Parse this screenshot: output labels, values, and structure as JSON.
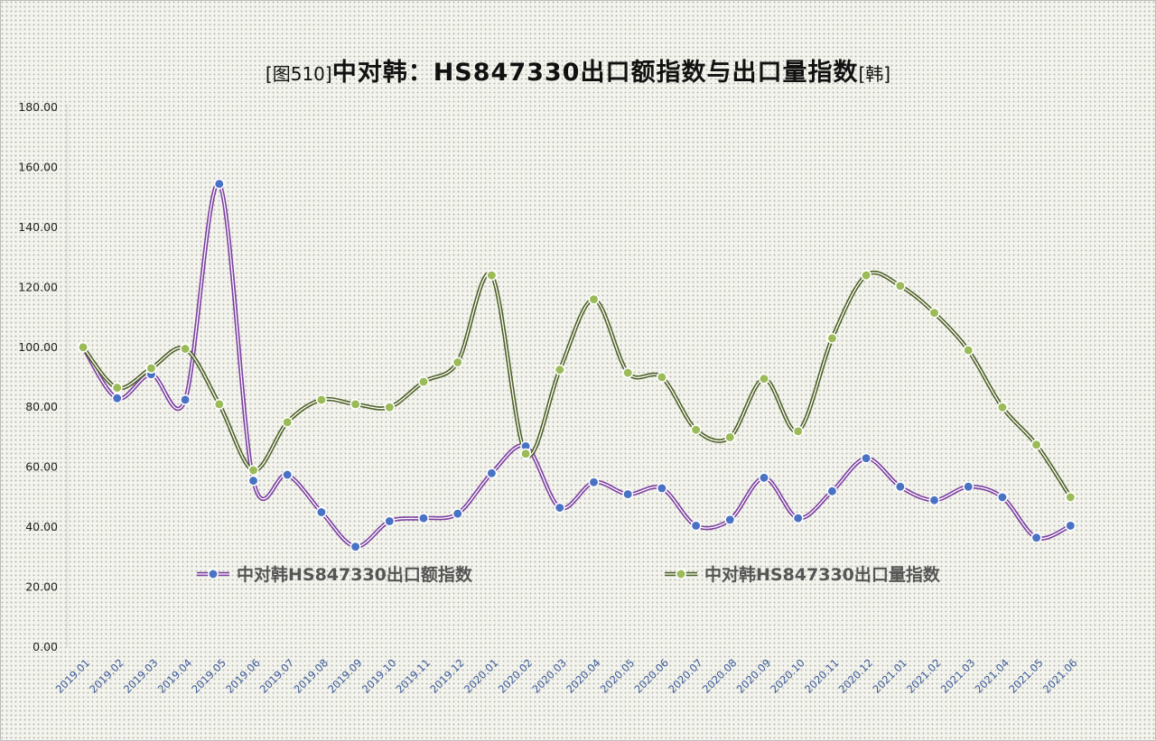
{
  "title": {
    "prefix": "[图510]",
    "main": "中对韩：HS847330出口额指数与出口量指数",
    "suffix": "[韩]"
  },
  "colors": {
    "amount_line": "#7b3fa0",
    "amount_marker": "#4a72c4",
    "volume_line": "#4f6128",
    "volume_marker": "#9bbb59"
  },
  "chart_data": {
    "type": "line",
    "title": "[图510]中对韩：HS847330出口额指数与出口量指数[韩]",
    "xlabel": "",
    "ylabel": "",
    "ylim": [
      0,
      180
    ],
    "yticks": [
      "0.00",
      "20.00",
      "40.00",
      "60.00",
      "80.00",
      "100.00",
      "120.00",
      "140.00",
      "160.00",
      "180.00"
    ],
    "grid": false,
    "legend_position": "inside-lower-center",
    "categories": [
      "2019.01",
      "2019.02",
      "2019.03",
      "2019.04",
      "2019.05",
      "2019.06",
      "2019.07",
      "2019.08",
      "2019.09",
      "2019.10",
      "2019.11",
      "2019.12",
      "2020.01",
      "2020.02",
      "2020.03",
      "2020.04",
      "2020.05",
      "2020.06",
      "2020.07",
      "2020.08",
      "2020.09",
      "2020.10",
      "2020.11",
      "2020.12",
      "2021.01",
      "2021.02",
      "2021.03",
      "2021.04",
      "2021.05",
      "2021.06"
    ],
    "series": [
      {
        "name": "中对韩HS847330出口额指数",
        "values": [
          100,
          83,
          91,
          82.5,
          154.5,
          55.5,
          57.5,
          45,
          33.5,
          42,
          43,
          44.5,
          58,
          67,
          46.5,
          55,
          51,
          53,
          40.5,
          42.5,
          56.5,
          43,
          52,
          63,
          53.5,
          49,
          53.5,
          50,
          36.5,
          40.5
        ]
      },
      {
        "name": "中对韩HS847330出口量指数",
        "values": [
          100,
          86.5,
          93,
          99.5,
          81,
          59,
          75,
          82.5,
          81,
          80,
          88.5,
          95,
          124,
          64.5,
          92.5,
          116,
          91.5,
          90,
          72.5,
          70,
          89.5,
          72,
          103,
          124,
          120.5,
          111.5,
          99,
          80,
          67.5,
          50
        ]
      }
    ]
  }
}
